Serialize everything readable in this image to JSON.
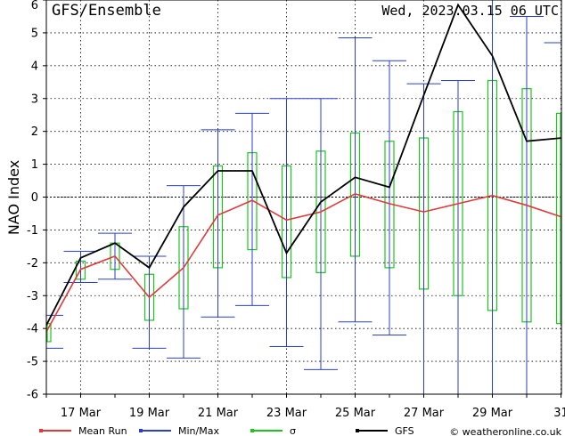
{
  "chart_data": {
    "type": "line",
    "title": "GFS/Ensemble",
    "run_label": "Wed, 2023.03.15   06 UTC",
    "ylabel": "NAO Index",
    "ylim": [
      -6,
      6
    ],
    "yticks": [
      -6,
      -5,
      -4,
      -3,
      -2,
      -1,
      0,
      1,
      2,
      3,
      4,
      5,
      6
    ],
    "xlim": [
      0,
      15
    ],
    "xticks": [
      {
        "pos": 1,
        "label": "17 Mar"
      },
      {
        "pos": 3,
        "label": "19 Mar"
      },
      {
        "pos": 5,
        "label": "21 Mar"
      },
      {
        "pos": 7,
        "label": "23 Mar"
      },
      {
        "pos": 9,
        "label": "25 Mar"
      },
      {
        "pos": 11,
        "label": "27 Mar"
      },
      {
        "pos": 13,
        "label": "29 Mar"
      },
      {
        "pos": 15,
        "label": "31"
      }
    ],
    "x": [
      0,
      1,
      2,
      3,
      4,
      5,
      6,
      7,
      8,
      9,
      10,
      11,
      12,
      13,
      14,
      15
    ],
    "gfs": [
      -3.9,
      -1.85,
      -1.4,
      -2.15,
      -0.3,
      0.8,
      0.8,
      -1.7,
      -0.15,
      0.6,
      0.3,
      3.1,
      5.85,
      4.3,
      1.7,
      1.8
    ],
    "mean": [
      -4.1,
      -2.2,
      -1.8,
      -3.05,
      -2.15,
      -0.55,
      -0.1,
      -0.7,
      -0.45,
      0.1,
      -0.2,
      -0.45,
      -0.2,
      0.05,
      -0.25,
      -0.6
    ],
    "min": [
      -4.6,
      -2.6,
      -2.5,
      -4.6,
      -4.9,
      -3.65,
      -3.3,
      -4.55,
      -5.25,
      -3.8,
      -4.2,
      -6.0,
      -6.0,
      -6.0,
      -6.0,
      -6.0
    ],
    "max": [
      -3.6,
      -1.65,
      -1.1,
      -1.8,
      0.35,
      2.05,
      2.55,
      3.0,
      3.0,
      4.85,
      4.15,
      3.45,
      3.55,
      6.0,
      5.5,
      4.7
    ],
    "sigma_low": [
      -4.4,
      -2.5,
      -2.2,
      -3.75,
      -3.4,
      -2.15,
      -1.6,
      -2.45,
      -2.3,
      -1.8,
      -2.15,
      -2.8,
      -3.0,
      -3.45,
      -3.8,
      -3.85
    ],
    "sigma_high": [
      -3.85,
      -1.95,
      -1.4,
      -2.35,
      -0.9,
      0.95,
      1.35,
      0.95,
      1.4,
      1.95,
      1.7,
      1.8,
      2.6,
      3.55,
      3.3,
      2.55
    ],
    "colors": {
      "mean": "#e03a3a",
      "minmax": "#2a3fd0",
      "sigma": "#1ec41e",
      "gfs": "#000000"
    },
    "legend": [
      {
        "key": "mean",
        "label": "Mean Run"
      },
      {
        "key": "minmax",
        "label": "Min/Max"
      },
      {
        "key": "sigma",
        "label": "σ"
      },
      {
        "key": "gfs",
        "label": "GFS"
      }
    ],
    "legend_position": "bottom",
    "grid": true,
    "credit": "© weatheronline.co.uk"
  }
}
